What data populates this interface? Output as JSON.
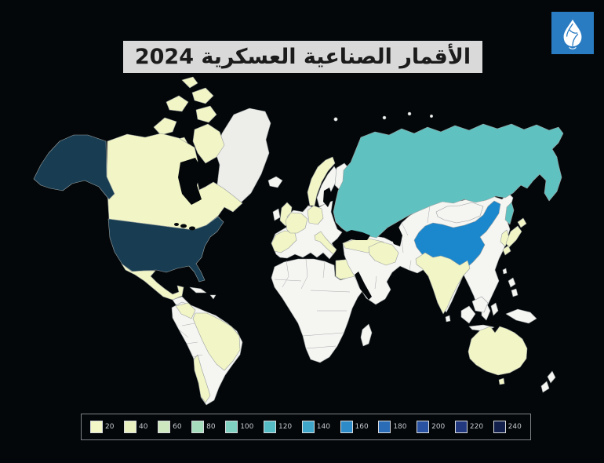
{
  "page": {
    "background": "#04070a"
  },
  "header": {
    "title": "الأقمار الصناعية العسكرية 2024",
    "title_bg": "#d9d9d9",
    "title_color": "#1b1b1b",
    "logo": {
      "label": "Al Jazeera",
      "bg": "#2a7cc2",
      "glyph_color": "#ffffff"
    }
  },
  "chart_data": {
    "type": "heatmap",
    "subtype": "world-choropleth",
    "title": "الأقمار الصناعية العسكرية 2024",
    "year": "2024",
    "legend": {
      "position": "bottom",
      "values": [
        "20",
        "40",
        "60",
        "80",
        "100",
        "120",
        "140",
        "160",
        "180",
        "200",
        "220",
        "240"
      ],
      "colors": [
        "#f3f6c6",
        "#e9f0c0",
        "#cfe7bf",
        "#a5dcbc",
        "#7fd0c0",
        "#55bcc6",
        "#3fa6ca",
        "#2d8cc8",
        "#2a6cb5",
        "#2a52a2",
        "#22397f",
        "#14204c"
      ]
    },
    "no_data_color": "#f5f5f2",
    "series": [
      {
        "name": "United States",
        "approx_value": 240,
        "color": "#183d52"
      },
      {
        "name": "China",
        "approx_value": 160,
        "color": "#1b87cc"
      },
      {
        "name": "Russia",
        "approx_value": 110,
        "color": "#5fc2c1"
      },
      {
        "name": "Canada",
        "approx_value": 20,
        "color": "#f2f5c5"
      },
      {
        "name": "Mexico",
        "approx_value": 20,
        "color": "#f2f5c5"
      },
      {
        "name": "Brazil",
        "approx_value": 20,
        "color": "#f2f5c5"
      },
      {
        "name": "Colombia",
        "approx_value": 20,
        "color": "#f2f5c5"
      },
      {
        "name": "Chile",
        "approx_value": 20,
        "color": "#f2f5c5"
      },
      {
        "name": "United Kingdom",
        "approx_value": 20,
        "color": "#f2f5c5"
      },
      {
        "name": "Norway",
        "approx_value": 20,
        "color": "#f2f5c5"
      },
      {
        "name": "France",
        "approx_value": 20,
        "color": "#f2f5c5"
      },
      {
        "name": "Germany",
        "approx_value": 20,
        "color": "#f2f5c5"
      },
      {
        "name": "Spain",
        "approx_value": 20,
        "color": "#f2f5c5"
      },
      {
        "name": "Italy",
        "approx_value": 20,
        "color": "#f2f5c5"
      },
      {
        "name": "Turkey",
        "approx_value": 20,
        "color": "#f2f5c5"
      },
      {
        "name": "Egypt",
        "approx_value": 20,
        "color": "#f2f5c5"
      },
      {
        "name": "Iran",
        "approx_value": 20,
        "color": "#f2f5c5"
      },
      {
        "name": "India",
        "approx_value": 20,
        "color": "#f2f5c5"
      },
      {
        "name": "Japan",
        "approx_value": 20,
        "color": "#f2f5c5"
      },
      {
        "name": "South Korea",
        "approx_value": 20,
        "color": "#f2f5c5"
      },
      {
        "name": "Australia",
        "approx_value": 20,
        "color": "#f2f5c5"
      }
    ]
  },
  "map": {
    "fills": {
      "water": "#04070a",
      "nodata": "#f5f5f2",
      "greenland": "#ededea",
      "tier1": "#f2f5c5",
      "russia": "#5fc2c1",
      "china": "#1b87cc",
      "usa": "#183d52"
    },
    "border_color": "#9aa1a1"
  }
}
